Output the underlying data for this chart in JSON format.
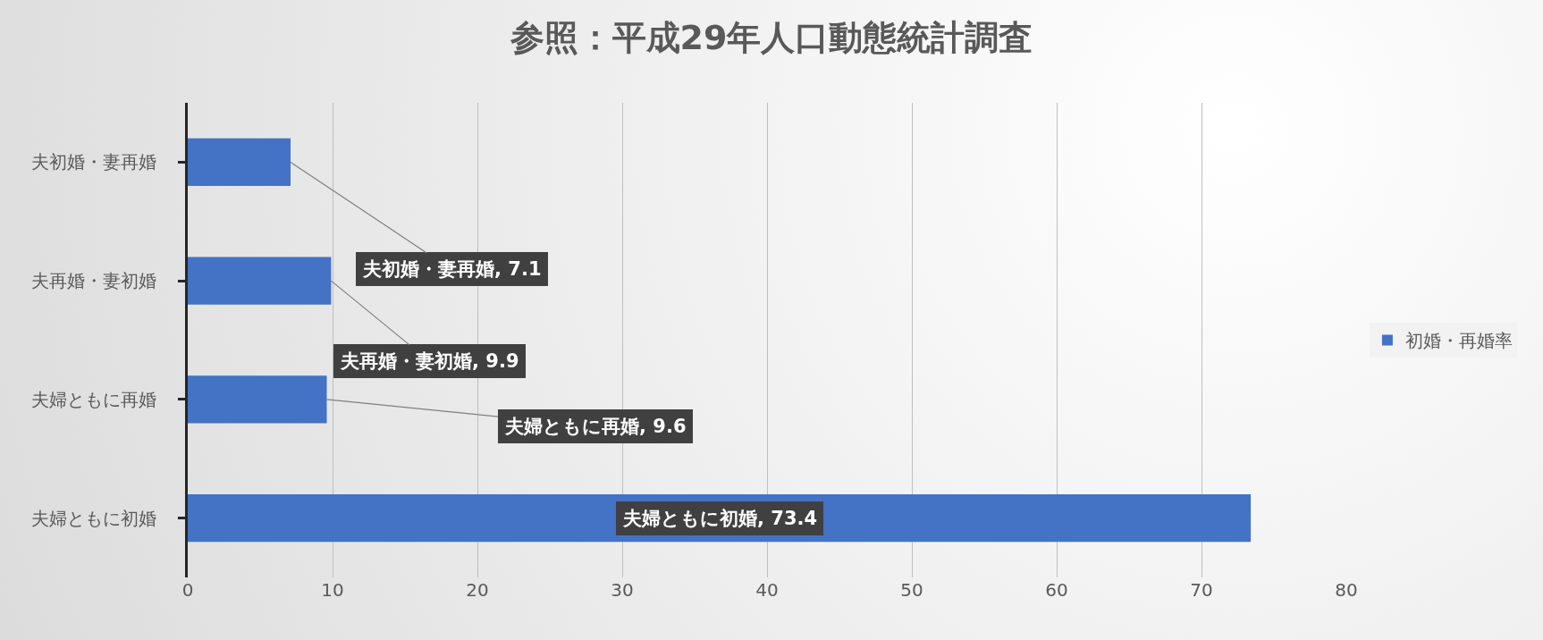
{
  "chart_data": {
    "type": "bar",
    "orientation": "horizontal",
    "title": "参照：平成29年人口動態統計調査",
    "categories": [
      "夫初婚・妻再婚",
      "夫再婚・妻初婚",
      "夫婦ともに再婚",
      "夫婦ともに初婚"
    ],
    "series": [
      {
        "name": "初婚・再婚率",
        "color": "#4472c4",
        "values": [
          7.1,
          9.9,
          9.6,
          73.4
        ],
        "value_labels": [
          "夫初婚・妻再婚, 7.1",
          "夫再婚・妻初婚, 9.9",
          "夫婦ともに再婚, 9.6",
          "夫婦ともに初婚, 73.4"
        ]
      }
    ],
    "xlim": [
      0,
      80
    ],
    "xticks": [
      0,
      10,
      20,
      30,
      40,
      50,
      60,
      70,
      80
    ],
    "grid": "x",
    "legend": "right"
  }
}
